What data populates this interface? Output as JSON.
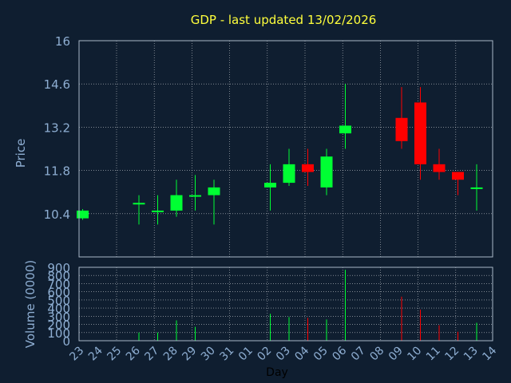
{
  "chart_data": {
    "type": "candlestick",
    "title": "GDP - last updated 13/02/2026",
    "xlabel": "Day",
    "x_ticks": [
      "23",
      "24",
      "25",
      "26",
      "27",
      "28",
      "29",
      "30",
      "31",
      "01",
      "02",
      "03",
      "04",
      "05",
      "06",
      "07",
      "08",
      "09",
      "10",
      "11",
      "12",
      "13",
      "14"
    ],
    "price": {
      "ylabel": "Price",
      "ylim": [
        9.0,
        16.0
      ],
      "y_ticks": [
        "16",
        "14.6",
        "13.2",
        "11.8",
        "10.4"
      ],
      "y_tick_values": [
        16.0,
        14.6,
        13.2,
        11.8,
        10.4
      ],
      "candles": [
        {
          "day": "23",
          "open": 10.25,
          "high": 10.55,
          "low": 10.2,
          "close": 10.5
        },
        {
          "day": "26",
          "open": 10.75,
          "high": 11.0,
          "low": 10.05,
          "close": 10.75
        },
        {
          "day": "27",
          "open": 10.5,
          "high": 11.0,
          "low": 10.05,
          "close": 10.5
        },
        {
          "day": "28",
          "open": 10.5,
          "high": 11.5,
          "low": 10.3,
          "close": 11.0
        },
        {
          "day": "29",
          "open": 11.0,
          "high": 11.65,
          "low": 10.5,
          "close": 11.0
        },
        {
          "day": "30",
          "open": 11.0,
          "high": 11.5,
          "low": 10.05,
          "close": 11.25
        },
        {
          "day": "02",
          "open": 11.25,
          "high": 12.0,
          "low": 10.5,
          "close": 11.4
        },
        {
          "day": "03",
          "open": 11.4,
          "high": 12.5,
          "low": 11.3,
          "close": 12.0
        },
        {
          "day": "04",
          "open": 12.0,
          "high": 12.5,
          "low": 11.3,
          "close": 11.75
        },
        {
          "day": "05",
          "open": 11.25,
          "high": 12.5,
          "low": 11.0,
          "close": 12.25
        },
        {
          "day": "06",
          "open": 13.0,
          "high": 14.6,
          "low": 12.5,
          "close": 13.25
        },
        {
          "day": "09",
          "open": 13.5,
          "high": 14.5,
          "low": 12.5,
          "close": 12.75
        },
        {
          "day": "10",
          "open": 14.0,
          "high": 14.5,
          "low": 11.5,
          "close": 12.0
        },
        {
          "day": "11",
          "open": 12.0,
          "high": 12.5,
          "low": 11.5,
          "close": 11.75
        },
        {
          "day": "12",
          "open": 11.75,
          "high": 11.75,
          "low": 11.0,
          "close": 11.5
        },
        {
          "day": "13",
          "open": 11.25,
          "high": 12.0,
          "low": 10.5,
          "close": 11.25
        }
      ]
    },
    "volume": {
      "ylabel": "Volume (0000)",
      "ylim": [
        0,
        900
      ],
      "y_ticks": [
        "900",
        "800",
        "700",
        "600",
        "500",
        "400",
        "300",
        "200",
        "100",
        "0"
      ],
      "y_tick_values": [
        900,
        800,
        700,
        600,
        500,
        400,
        300,
        200,
        100,
        0
      ],
      "bars": [
        {
          "day": "23",
          "value": 0
        },
        {
          "day": "26",
          "value": 100
        },
        {
          "day": "27",
          "value": 100
        },
        {
          "day": "28",
          "value": 250
        },
        {
          "day": "29",
          "value": 170
        },
        {
          "day": "30",
          "value": 0
        },
        {
          "day": "02",
          "value": 330
        },
        {
          "day": "03",
          "value": 290
        },
        {
          "day": "04",
          "value": 280
        },
        {
          "day": "05",
          "value": 260
        },
        {
          "day": "06",
          "value": 870
        },
        {
          "day": "09",
          "value": 540
        },
        {
          "day": "10",
          "value": 380
        },
        {
          "day": "11",
          "value": 190
        },
        {
          "day": "12",
          "value": 110
        },
        {
          "day": "13",
          "value": 220
        }
      ]
    },
    "colors": {
      "background": "#0f1e30",
      "up": "#00ff33",
      "down": "#ff0000",
      "grid": "#ffffff",
      "frame": "#aab8c8",
      "title": "#ffff3c",
      "tick_text": "#8eaed2",
      "xlabel_text": "#000000"
    }
  }
}
